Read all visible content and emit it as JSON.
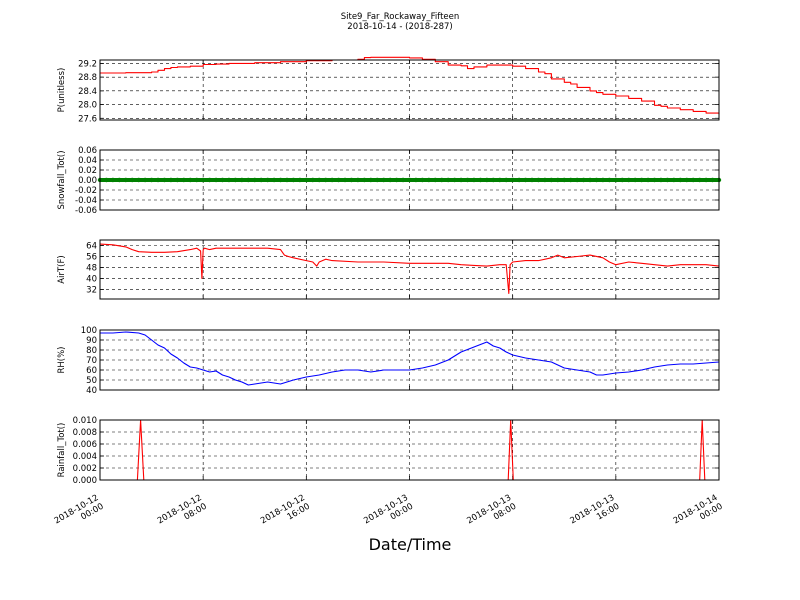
{
  "chart_data": {
    "type": "line",
    "title": "Site9_Far_Rockaway_Fifteen",
    "subtitle": "2018-10-14 - (2018-287)",
    "xlabel": "Date/Time",
    "x_tick_labels": [
      [
        "2018-10-12",
        "00:00"
      ],
      [
        "2018-10-12",
        "08:00"
      ],
      [
        "2018-10-12",
        "16:00"
      ],
      [
        "2018-10-13",
        "00:00"
      ],
      [
        "2018-10-13",
        "08:00"
      ],
      [
        "2018-10-13",
        "16:00"
      ],
      [
        "2018-10-14",
        "00:00"
      ]
    ],
    "x_range_hours": [
      0,
      48
    ],
    "grid": true,
    "panels": [
      {
        "ylabel": "P(unitless)",
        "color": "#ff0000",
        "ylim": [
          27.55,
          29.3
        ],
        "yticks": [
          "29.2",
          "28.8",
          "28.4",
          "28.0",
          "27.6"
        ],
        "ytick_values": [
          29.2,
          28.8,
          28.4,
          28.0,
          27.6
        ],
        "style": "step",
        "x": [
          0,
          2,
          4,
          4.5,
          5,
          5.5,
          6,
          7,
          7.5,
          8,
          9,
          10,
          12,
          14,
          16,
          18,
          20,
          20.5,
          21,
          23,
          24,
          25,
          26,
          27,
          28,
          28.5,
          29,
          30,
          32,
          33,
          34,
          34.5,
          35,
          36,
          36.5,
          37,
          38,
          38.5,
          39,
          40,
          41,
          42,
          43,
          43.5,
          44,
          45,
          46,
          47,
          48
        ],
        "values": [
          28.92,
          28.93,
          28.95,
          29.0,
          29.05,
          29.08,
          29.1,
          29.12,
          29.12,
          29.17,
          29.18,
          29.2,
          29.22,
          29.25,
          29.28,
          29.3,
          29.32,
          29.37,
          29.38,
          29.38,
          29.36,
          29.32,
          29.25,
          29.15,
          29.13,
          29.05,
          29.1,
          29.15,
          29.12,
          29.05,
          28.95,
          28.9,
          28.75,
          28.65,
          28.6,
          28.5,
          28.4,
          28.35,
          28.3,
          28.25,
          28.18,
          28.1,
          27.98,
          27.95,
          27.9,
          27.85,
          27.8,
          27.75,
          27.72
        ]
      },
      {
        "ylabel": "Snowfall_Tot()",
        "color": "#008000",
        "ylim": [
          -0.06,
          0.06
        ],
        "yticks": [
          "0.06",
          "0.04",
          "0.02",
          "0.00",
          "-0.02",
          "-0.04",
          "-0.06"
        ],
        "ytick_values": [
          0.06,
          0.04,
          0.02,
          0.0,
          -0.02,
          -0.04,
          -0.06
        ],
        "style": "markers",
        "x": [
          0,
          48
        ],
        "values": [
          0,
          0
        ]
      },
      {
        "ylabel": "AirT(F)",
        "color": "#ff0000",
        "ylim": [
          25,
          68
        ],
        "yticks": [
          "64",
          "56",
          "48",
          "40",
          "32"
        ],
        "ytick_values": [
          64,
          56,
          48,
          40,
          32
        ],
        "style": "line",
        "x": [
          0,
          1,
          2,
          2.5,
          3,
          4,
          5,
          6,
          7,
          7.5,
          7.8,
          7.9,
          8,
          8.1,
          8.5,
          9,
          10,
          11,
          12,
          13,
          14,
          14.3,
          14.6,
          15,
          16,
          16.5,
          16.8,
          17,
          17.5,
          18,
          20,
          22,
          24,
          25,
          26,
          27,
          28,
          29,
          30,
          31,
          31.5,
          31.7,
          31.8,
          32,
          33,
          34,
          35,
          35.5,
          36,
          37,
          38,
          39,
          39.5,
          40,
          41,
          42,
          43,
          44,
          45,
          46,
          47,
          48
        ],
        "values": [
          65,
          64.5,
          63,
          61,
          59.5,
          59,
          59,
          59.5,
          61,
          62,
          60,
          40,
          61,
          62,
          61,
          62,
          62,
          62,
          62,
          62,
          61,
          57,
          56,
          55,
          53,
          52,
          49,
          52,
          54,
          53,
          52,
          52,
          51,
          51,
          51,
          51,
          50,
          49.5,
          49,
          50,
          50,
          29,
          50,
          52,
          53,
          53,
          55,
          57,
          55,
          56,
          57,
          55,
          52,
          50,
          52,
          51,
          50,
          49,
          50,
          50,
          50,
          49
        ]
      },
      {
        "ylabel": "RH(%)",
        "color": "#0000ff",
        "ylim": [
          40,
          100
        ],
        "yticks": [
          "100",
          "90",
          "80",
          "70",
          "60",
          "50",
          "40"
        ],
        "ytick_values": [
          100,
          90,
          80,
          70,
          60,
          50,
          40
        ],
        "style": "line",
        "x": [
          0,
          1,
          2,
          3,
          3.5,
          4,
          4.5,
          5,
          5.5,
          6,
          6.5,
          7,
          7.5,
          8,
          8.5,
          9,
          9.5,
          10,
          10.5,
          11,
          11.5,
          12,
          13,
          14,
          14.5,
          15,
          16,
          17,
          18,
          19,
          20,
          21,
          22,
          23,
          24,
          25,
          26,
          27,
          28,
          29,
          30,
          30.5,
          31,
          31.5,
          32,
          33,
          34,
          35,
          36,
          37,
          38,
          38.5,
          39,
          40,
          41,
          42,
          43,
          44,
          45,
          46,
          47,
          48
        ],
        "values": [
          97,
          97,
          98,
          97,
          95,
          90,
          85,
          82,
          76,
          72,
          67,
          63,
          62,
          60,
          58,
          59,
          55,
          53,
          50,
          48,
          45,
          46,
          48,
          46,
          48,
          50,
          53,
          55,
          58,
          60,
          60,
          58,
          60,
          60,
          60,
          62,
          65,
          70,
          78,
          83,
          88,
          84,
          82,
          78,
          75,
          72,
          70,
          68,
          62,
          60,
          58,
          55,
          55,
          57,
          58,
          60,
          63,
          65,
          66,
          66,
          67,
          68
        ]
      },
      {
        "ylabel": "Rainfall_Tot()",
        "color": "#ff0000",
        "ylim": [
          0.0,
          0.01
        ],
        "yticks": [
          "0.010",
          "0.008",
          "0.006",
          "0.004",
          "0.002",
          "0.000"
        ],
        "ytick_values": [
          0.01,
          0.008,
          0.006,
          0.004,
          0.002,
          0.0
        ],
        "style": "line",
        "x": [
          0,
          2.9,
          3.15,
          3.4,
          31.65,
          31.85,
          32.05,
          46.5,
          46.7,
          46.9,
          48
        ],
        "values": [
          0,
          0,
          0.01,
          0,
          0,
          0.01,
          0,
          0,
          0.01,
          0,
          0
        ]
      }
    ]
  }
}
